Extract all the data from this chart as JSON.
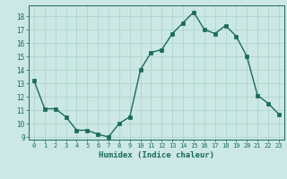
{
  "x": [
    0,
    1,
    2,
    3,
    4,
    5,
    6,
    7,
    8,
    9,
    10,
    11,
    12,
    13,
    14,
    15,
    16,
    17,
    18,
    19,
    20,
    21,
    22,
    23
  ],
  "y": [
    13.2,
    11.1,
    11.1,
    10.5,
    9.5,
    9.5,
    9.2,
    9.0,
    10.0,
    10.5,
    14.0,
    15.3,
    15.5,
    16.7,
    17.5,
    18.3,
    17.0,
    16.7,
    17.3,
    16.5,
    15.0,
    12.1,
    11.5,
    10.7
  ],
  "xlabel": "Humidex (Indice chaleur)",
  "ylim": [
    8.8,
    18.8
  ],
  "yticks": [
    9,
    10,
    11,
    12,
    13,
    14,
    15,
    16,
    17,
    18
  ],
  "xticks": [
    0,
    1,
    2,
    3,
    4,
    5,
    6,
    7,
    8,
    9,
    10,
    11,
    12,
    13,
    14,
    15,
    16,
    17,
    18,
    19,
    20,
    21,
    22,
    23
  ],
  "line_color": "#1a6b5a",
  "marker_color": "#1a6b5a",
  "bg_color": "#cce8e4",
  "grid_color": "#aed4ce",
  "axis_color": "#1a6b5a",
  "tick_color": "#1a6b5a",
  "label_color": "#1a6b5a",
  "fig_bg": "#cce8e4"
}
